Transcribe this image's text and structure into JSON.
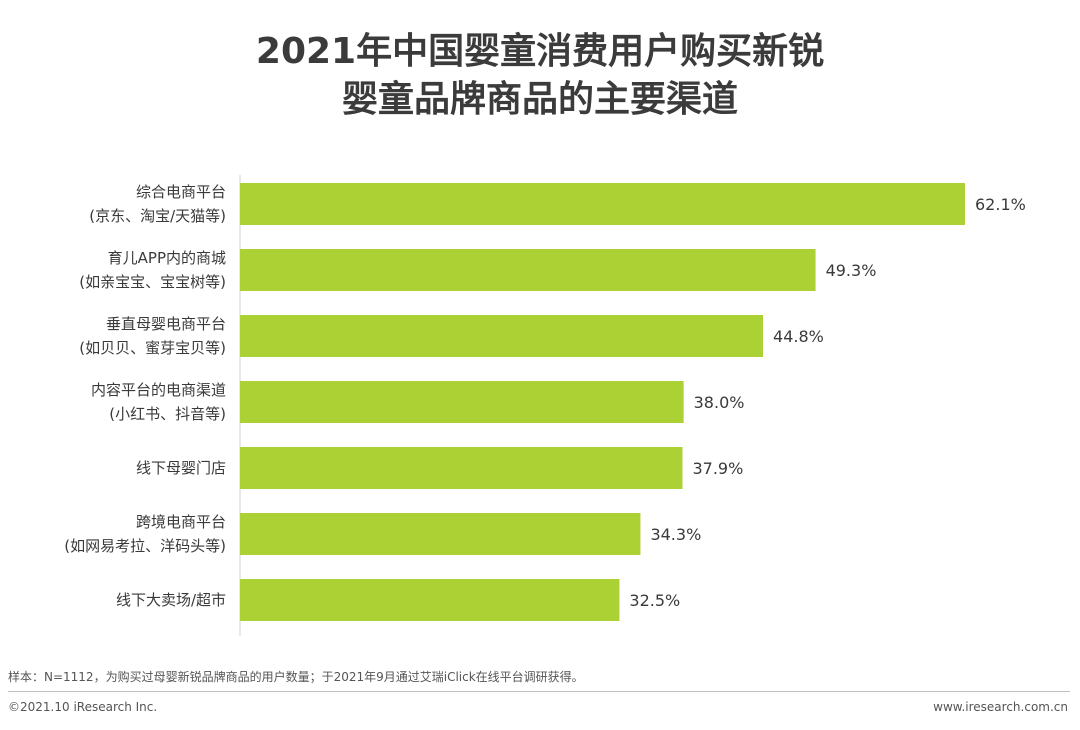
{
  "chart_data": {
    "type": "bar",
    "orientation": "horizontal",
    "title": [
      "2021年中国婴童消费用户购买新锐",
      "婴童品牌商品的主要渠道"
    ],
    "categories": [
      [
        "综合电商平台",
        "(京东、淘宝/天猫等)"
      ],
      [
        "育儿APP内的商城",
        "(如亲宝宝、宝宝树等)"
      ],
      [
        "垂直母婴电商平台",
        "(如贝贝、蜜芽宝贝等)"
      ],
      [
        "内容平台的电商渠道",
        "(小红书、抖音等)"
      ],
      [
        "线下母婴门店"
      ],
      [
        "跨境电商平台",
        "(如网易考拉、洋码头等)"
      ],
      [
        "线下大卖场/超市"
      ]
    ],
    "values": [
      62.1,
      49.3,
      44.8,
      38.0,
      37.9,
      34.3,
      32.5
    ],
    "value_labels": [
      "62.1%",
      "49.3%",
      "44.8%",
      "38.0%",
      "37.9%",
      "34.3%",
      "32.5%"
    ],
    "xlim": [
      0,
      70
    ],
    "bar_color": "#acd135",
    "grid": false,
    "legend": false
  },
  "footer": {
    "note": "样本：N=1112，为购买过母婴新锐品牌商品的用户数量；于2021年9月通过艾瑞iClick在线平台调研获得。",
    "copyright": "©2021.10 iResearch Inc.",
    "website": "www.iresearch.com.cn"
  }
}
